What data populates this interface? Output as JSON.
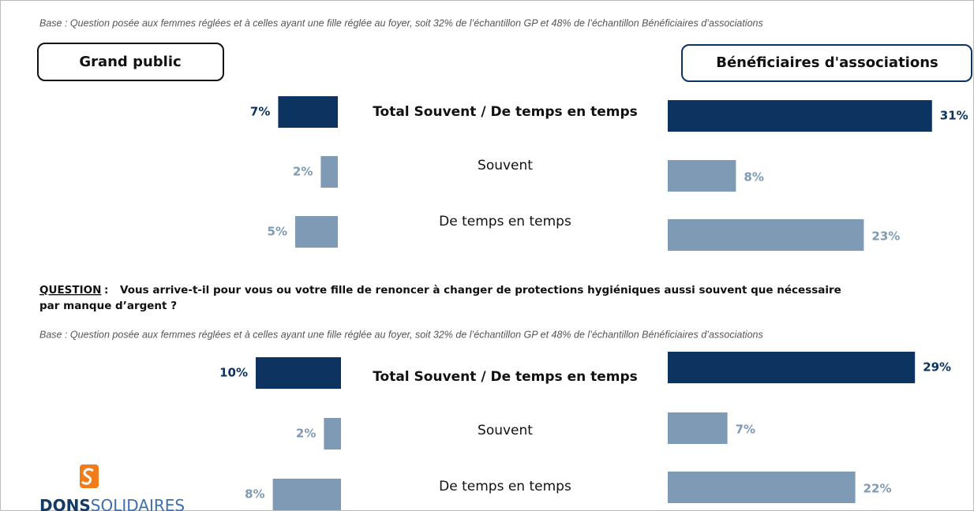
{
  "panels": [
    "Grand public",
    "Bénéficiaires d'associations"
  ],
  "chart_data": [
    {
      "type": "butterfly-bar",
      "base": "Base : Question posée aux femmes réglées et à celles ayant une fille réglée au foyer, soit 32% de l’échantillon GP et 48% de l’échantillon Bénéficiaires d’associations",
      "categories": [
        "Total Souvent / De temps en temps",
        "Souvent",
        "De temps en temps"
      ],
      "series": [
        {
          "colors": [
            "#0d3461",
            "#7f9ab5",
            "#7f9ab5"
          ],
          "values": [
            7,
            2,
            5
          ],
          "value_labels": [
            "7%",
            "2%",
            "5%"
          ]
        },
        {
          "colors": [
            "#0d3461",
            "#7f9ab5",
            "#7f9ab5"
          ],
          "values": [
            31,
            8,
            23
          ],
          "value_labels": [
            "31%",
            "8%",
            "23%"
          ]
        }
      ]
    },
    {
      "type": "butterfly-bar",
      "question_label": "QUESTION",
      "question": [
        "Vous arrive-t-il pour vous ou votre fille de renoncer à changer de protections hygiéniques aussi souvent que nécessaire",
        "par manque d’argent ?"
      ],
      "base": "Base : Question posée aux femmes réglées et à celles ayant une fille réglée au foyer, soit 32% de l’échantillon GP et 48% de l’échantillon Bénéficiaires d’associations",
      "categories": [
        "Total Souvent / De temps en temps",
        "Souvent",
        "De temps en temps"
      ],
      "series": [
        {
          "colors": [
            "#0d3461",
            "#7f9ab5",
            "#7f9ab5"
          ],
          "values": [
            10,
            2,
            8
          ],
          "value_labels": [
            "10%",
            "2%",
            "8%"
          ]
        },
        {
          "colors": [
            "#0d3461",
            "#7f9ab5",
            "#7f9ab5"
          ],
          "values": [
            29,
            7,
            22
          ],
          "value_labels": [
            "29%",
            "7%",
            "22%"
          ]
        }
      ]
    }
  ],
  "logo": {
    "bold": "DONS",
    "light": "SOLIDAIRES"
  }
}
